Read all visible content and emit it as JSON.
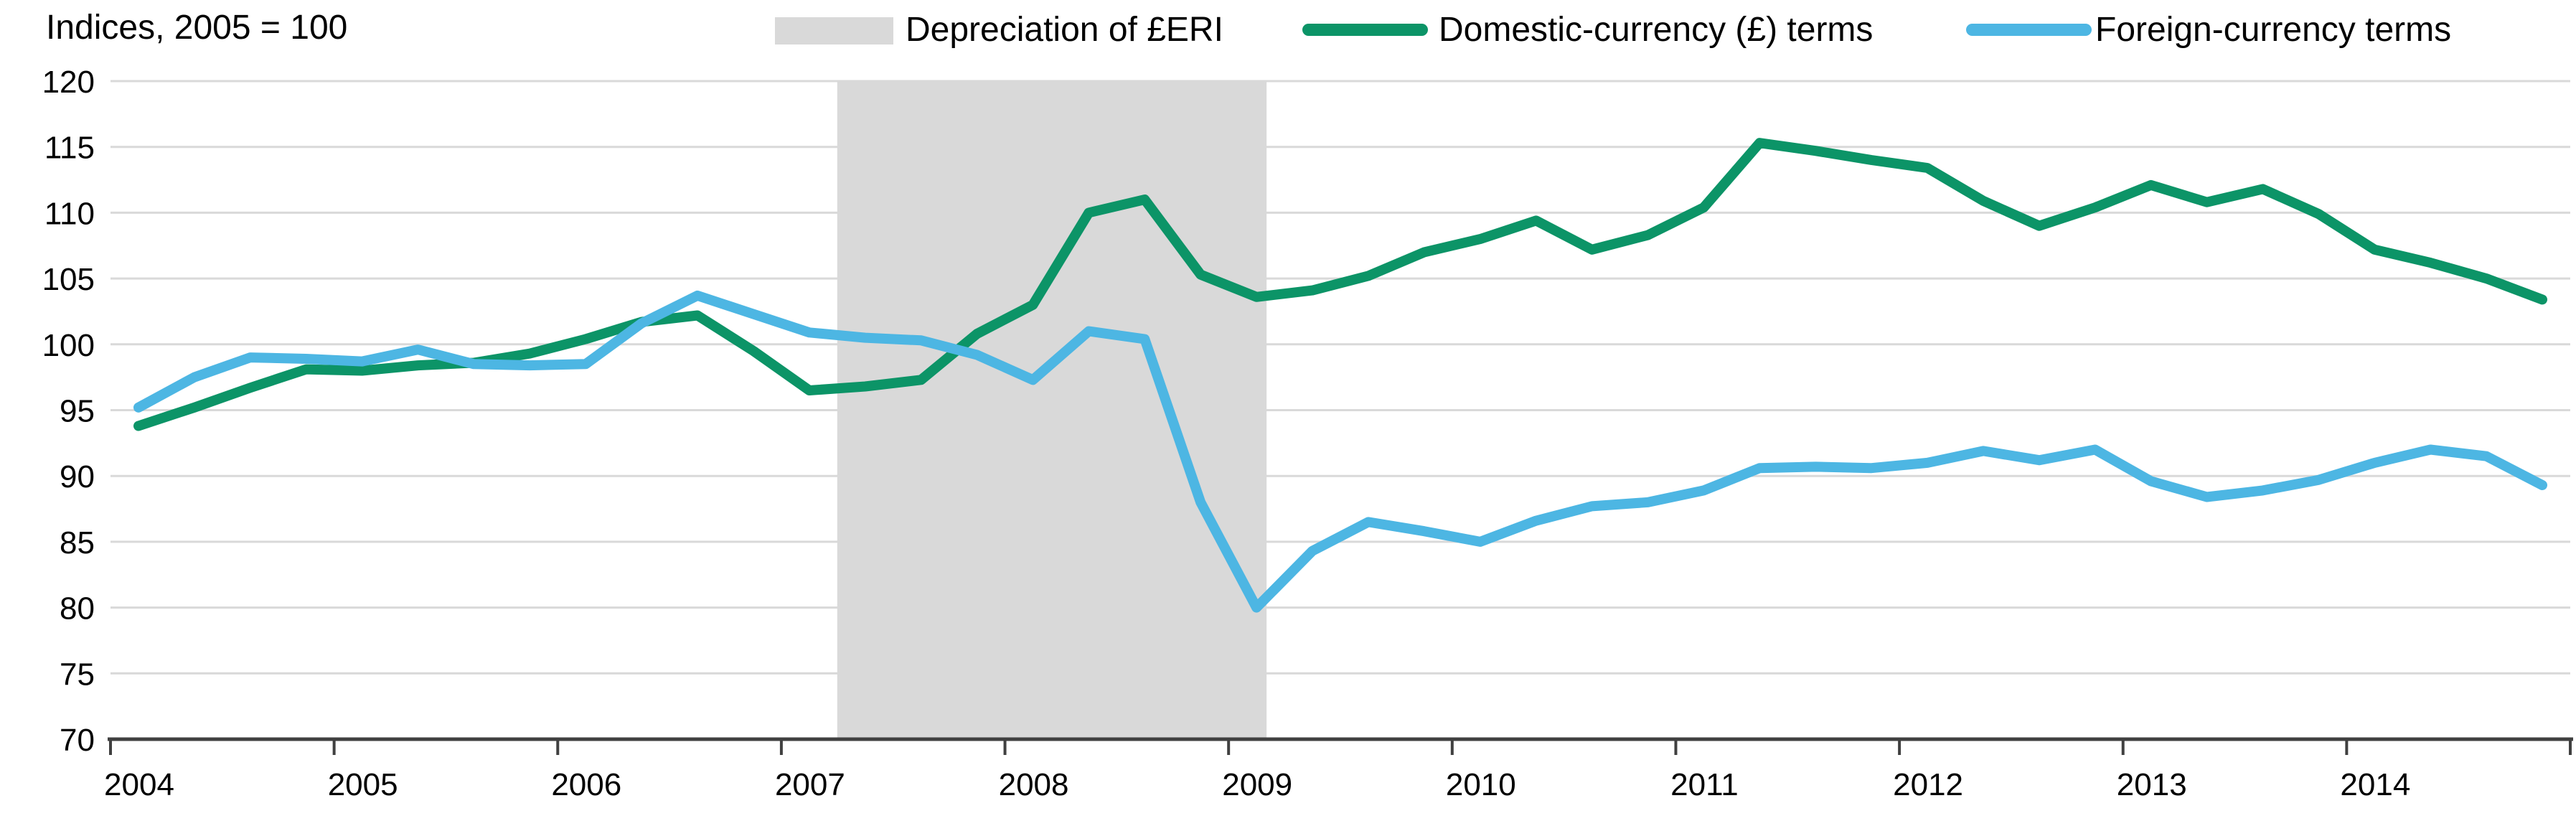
{
  "title": "Indices, 2005 = 100",
  "legend": {
    "depreciation": {
      "label": "Depreciation of £ERI"
    },
    "domestic": {
      "label": "Domestic-currency (£) terms"
    },
    "foreign": {
      "label": "Foreign-currency terms"
    }
  },
  "colors": {
    "domestic_line": "#0c9467",
    "foreign_line": "#4db6e3",
    "band_fill": "#d9d9d9",
    "gridline": "#d9d9d9",
    "axis": "#404040",
    "text": "#000000"
  },
  "chart_data": {
    "type": "line",
    "title": "Indices, 2005 = 100",
    "legend_position": "top",
    "grid": "horizontal",
    "ylim": [
      70,
      120
    ],
    "y_ticks": [
      120,
      115,
      110,
      105,
      100,
      95,
      90,
      85,
      80,
      75,
      70
    ],
    "x_tick_labels": [
      "2004",
      "2005",
      "2006",
      "2007",
      "2008",
      "2009",
      "2010",
      "2011",
      "2012",
      "2013",
      "2014"
    ],
    "x_start_year": 2004,
    "x_end_year": 2015,
    "x_frequency": "quarterly",
    "shaded_band": {
      "label": "Depreciation of £ERI",
      "from_year": 2007.25,
      "to_year": 2009.17
    },
    "series": [
      {
        "name": "Domestic-currency (£) terms",
        "key": "domestic",
        "values": [
          93.8,
          95.2,
          96.7,
          98.1,
          98.0,
          98.4,
          98.6,
          99.3,
          100.4,
          101.7,
          102.2,
          99.5,
          96.5,
          96.8,
          97.3,
          100.8,
          103.0,
          110.0,
          111.0,
          105.3,
          103.6,
          104.1,
          105.2,
          107.0,
          108.0,
          109.4,
          107.2,
          108.3,
          110.4,
          115.3,
          114.7,
          114.0,
          113.4,
          110.9,
          109.0,
          110.4,
          112.1,
          110.8,
          111.8,
          109.9,
          107.2,
          106.2,
          105.0,
          103.4
        ]
      },
      {
        "name": "Foreign-currency terms",
        "key": "foreign",
        "values": [
          95.2,
          97.5,
          99.0,
          98.9,
          98.7,
          99.6,
          98.5,
          98.4,
          98.5,
          101.6,
          103.7,
          102.3,
          100.9,
          100.5,
          100.3,
          99.2,
          97.3,
          101.0,
          100.4,
          88.0,
          80.0,
          84.3,
          86.5,
          85.8,
          85.0,
          86.6,
          87.7,
          88.0,
          88.9,
          90.6,
          90.7,
          90.6,
          91.0,
          91.9,
          91.2,
          92.0,
          89.6,
          88.4,
          88.9,
          89.7,
          91.0,
          92.0,
          91.5,
          89.3
        ]
      }
    ]
  }
}
